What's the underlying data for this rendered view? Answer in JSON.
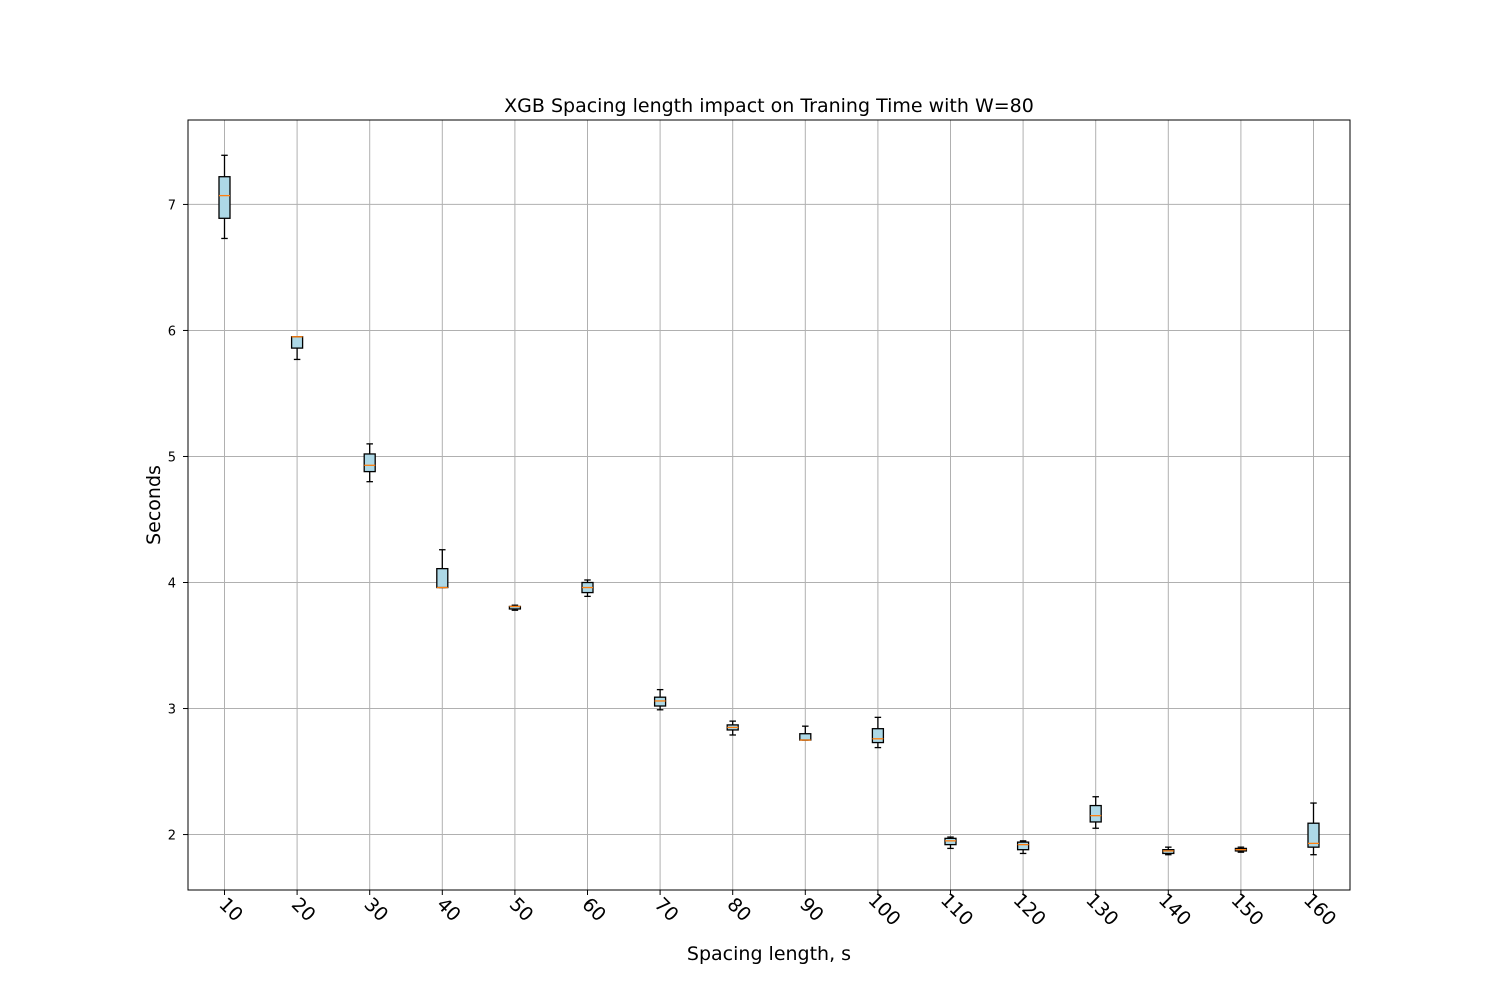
{
  "chart_data": {
    "type": "box",
    "title": "XGB Spacing length impact on Traning Time with W=80",
    "xlabel": "Spacing length, s",
    "ylabel": "Seconds",
    "categories": [
      "10",
      "20",
      "30",
      "40",
      "50",
      "60",
      "70",
      "80",
      "90",
      "100",
      "110",
      "120",
      "130",
      "140",
      "150",
      "160"
    ],
    "yticks": [
      2,
      3,
      4,
      5,
      6,
      7
    ],
    "ylim": [
      1.56,
      7.67
    ],
    "grid": true,
    "box_fill": "#add8e6",
    "median_color": "#ff7f0e",
    "grid_color": "#b0b0b0",
    "boxes": [
      {
        "whislo": 6.73,
        "q1": 6.89,
        "med": 7.07,
        "q3": 7.22,
        "whishi": 7.39
      },
      {
        "whislo": 5.77,
        "q1": 5.86,
        "med": 5.95,
        "q3": 5.95,
        "whishi": 5.95
      },
      {
        "whislo": 4.8,
        "q1": 4.88,
        "med": 4.93,
        "q3": 5.02,
        "whishi": 5.1
      },
      {
        "whislo": 3.96,
        "q1": 3.96,
        "med": 3.96,
        "q3": 4.11,
        "whishi": 4.26
      },
      {
        "whislo": 3.78,
        "q1": 3.79,
        "med": 3.81,
        "q3": 3.81,
        "whishi": 3.82
      },
      {
        "whislo": 3.89,
        "q1": 3.92,
        "med": 3.96,
        "q3": 4.0,
        "whishi": 4.02
      },
      {
        "whislo": 2.99,
        "q1": 3.02,
        "med": 3.06,
        "q3": 3.09,
        "whishi": 3.15
      },
      {
        "whislo": 2.79,
        "q1": 2.83,
        "med": 2.85,
        "q3": 2.87,
        "whishi": 2.9
      },
      {
        "whislo": 2.75,
        "q1": 2.75,
        "med": 2.75,
        "q3": 2.8,
        "whishi": 2.86
      },
      {
        "whislo": 2.69,
        "q1": 2.73,
        "med": 2.76,
        "q3": 2.84,
        "whishi": 2.93
      },
      {
        "whislo": 1.89,
        "q1": 1.92,
        "med": 1.95,
        "q3": 1.97,
        "whishi": 1.98
      },
      {
        "whislo": 1.85,
        "q1": 1.88,
        "med": 1.92,
        "q3": 1.94,
        "whishi": 1.95
      },
      {
        "whislo": 2.05,
        "q1": 2.1,
        "med": 2.15,
        "q3": 2.23,
        "whishi": 2.3
      },
      {
        "whislo": 1.84,
        "q1": 1.85,
        "med": 1.87,
        "q3": 1.88,
        "whishi": 1.9
      },
      {
        "whislo": 1.86,
        "q1": 1.87,
        "med": 1.88,
        "q3": 1.89,
        "whishi": 1.9
      },
      {
        "whislo": 1.84,
        "q1": 1.9,
        "med": 1.93,
        "q3": 2.09,
        "whishi": 2.25
      }
    ]
  }
}
